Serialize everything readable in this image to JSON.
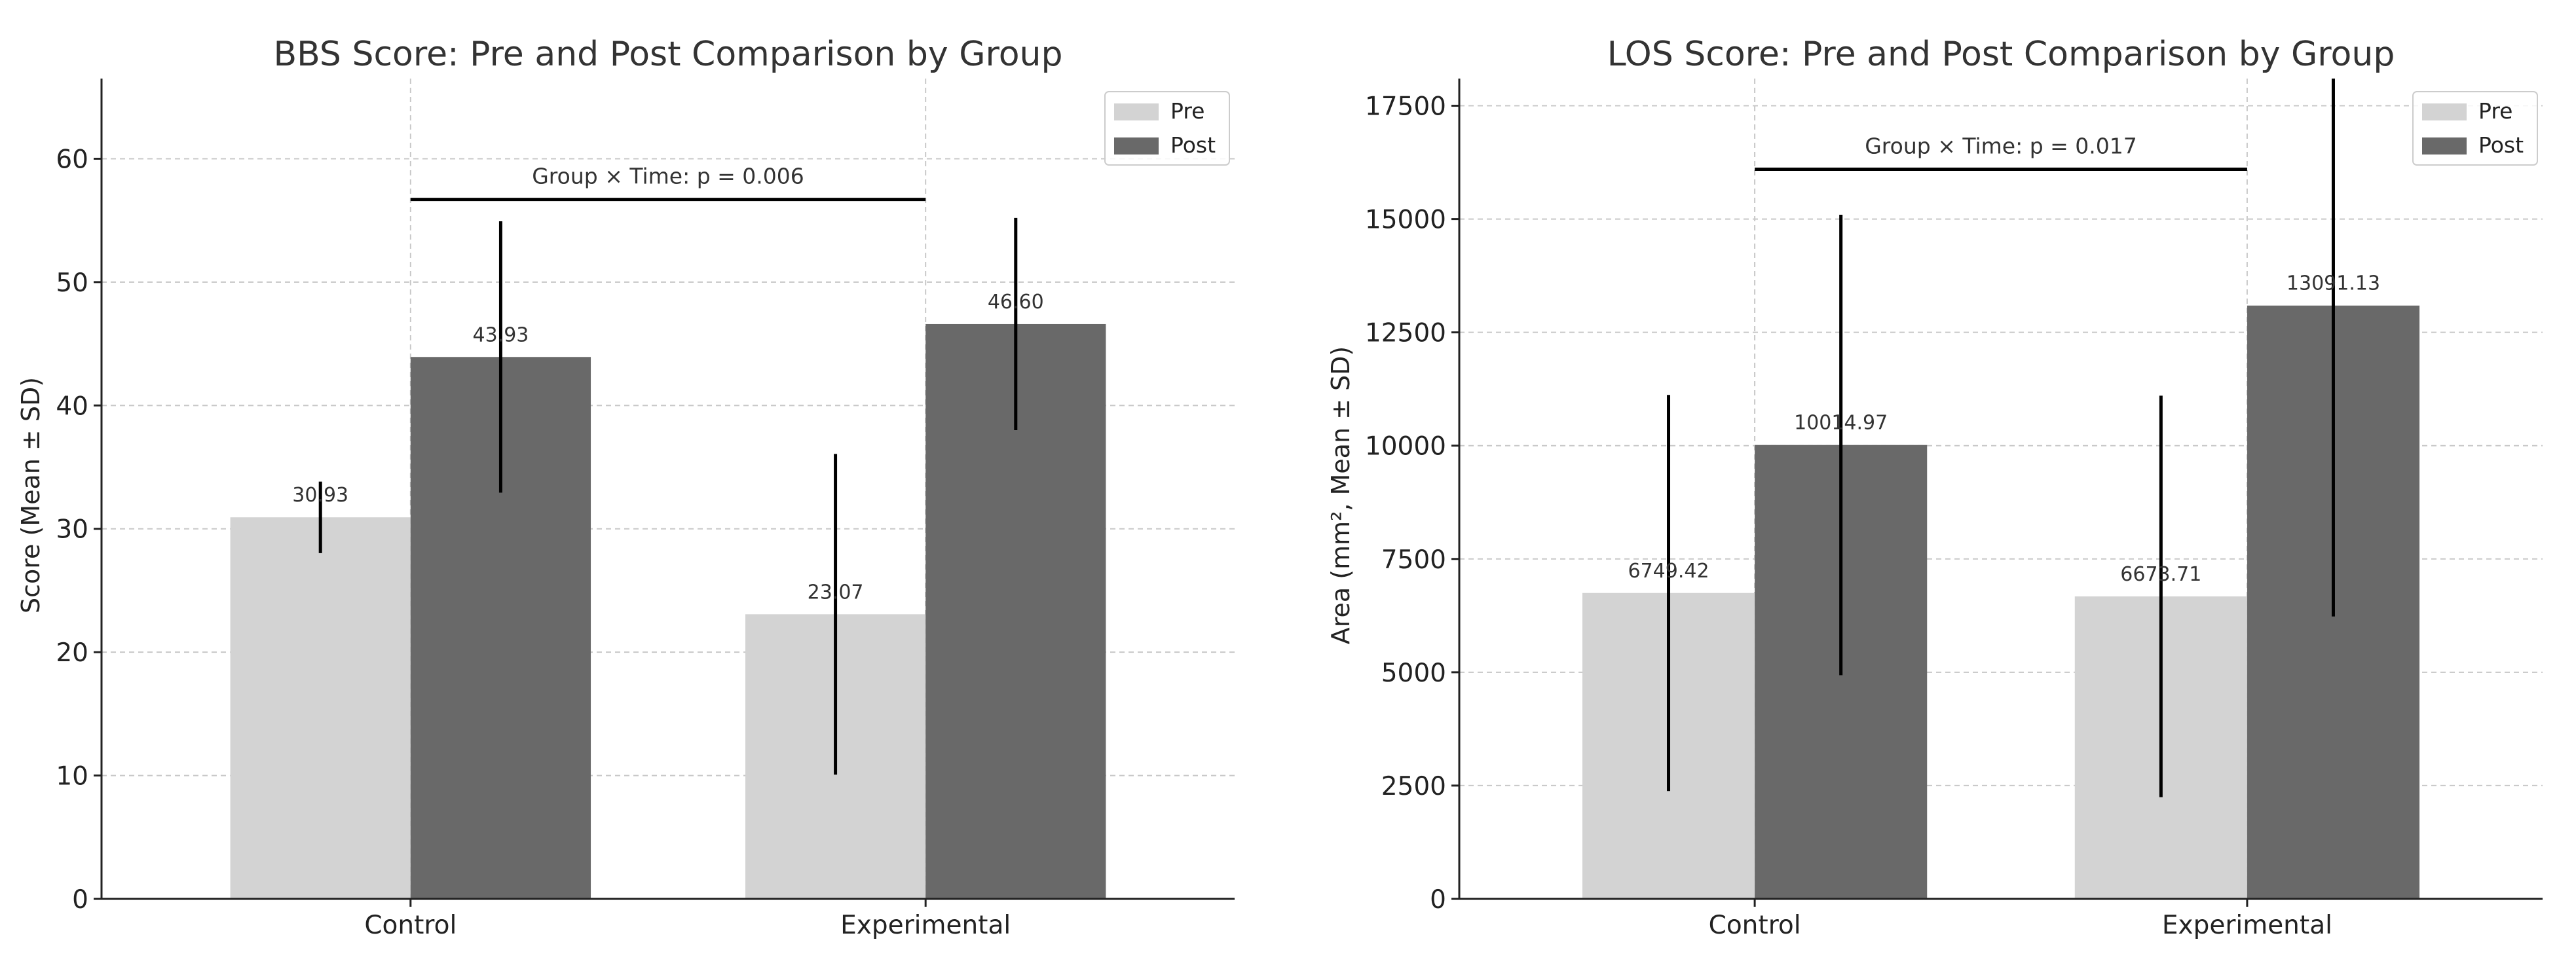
{
  "colors": {
    "pre": "#d3d3d3",
    "post": "#696969",
    "axis": "#222222",
    "grid": "#c8c8c8",
    "text": "#333333",
    "errorbar": "#000000"
  },
  "legend_labels": [
    "Pre",
    "Post"
  ],
  "chart_data": [
    {
      "type": "bar",
      "title": "BBS Score: Pre and Post Comparison by Group",
      "xlabel": "",
      "ylabel": "Score (Mean ± SD)",
      "categories": [
        "Control",
        "Experimental"
      ],
      "ylim": [
        0,
        66.5
      ],
      "yticks": [
        0,
        10,
        20,
        30,
        40,
        50,
        60
      ],
      "ytick_labels": [
        "0",
        "10",
        "20",
        "30",
        "40",
        "50",
        "60"
      ],
      "grid": true,
      "legend_position": "top-right",
      "series": [
        {
          "name": "Pre",
          "values": [
            30.93,
            23.07
          ],
          "sd": [
            2.9,
            13.0
          ],
          "labels": [
            "30.93",
            "23.07"
          ]
        },
        {
          "name": "Post",
          "values": [
            43.93,
            46.6
          ],
          "sd": [
            11.0,
            8.6
          ],
          "labels": [
            "43.93",
            "46.60"
          ]
        }
      ],
      "annotation": {
        "text": "Group × Time: p = 0.006",
        "y": 56.7
      }
    },
    {
      "type": "bar",
      "title": "LOS Score: Pre and Post Comparison by Group",
      "xlabel": "",
      "ylabel": "Area (mm², Mean ± SD)",
      "categories": [
        "Control",
        "Experimental"
      ],
      "ylim": [
        0,
        18100
      ],
      "yticks": [
        0,
        2500,
        5000,
        7500,
        10000,
        12500,
        15000,
        17500
      ],
      "ytick_labels": [
        "0",
        "2500",
        "5000",
        "7500",
        "10000",
        "12500",
        "15000",
        "17500"
      ],
      "grid": true,
      "legend_position": "top-right",
      "series": [
        {
          "name": "Pre",
          "values": [
            6749.42,
            6673.71
          ],
          "sd": [
            4370,
            4430
          ],
          "labels": [
            "6749.42",
            "6673.71"
          ]
        },
        {
          "name": "Post",
          "values": [
            10014.97,
            13091.13
          ],
          "sd": [
            5080,
            6860
          ],
          "labels": [
            "10014.97",
            "13091.13"
          ]
        }
      ],
      "annotation": {
        "text": "Group × Time: p = 0.017",
        "y": 16100
      }
    }
  ]
}
